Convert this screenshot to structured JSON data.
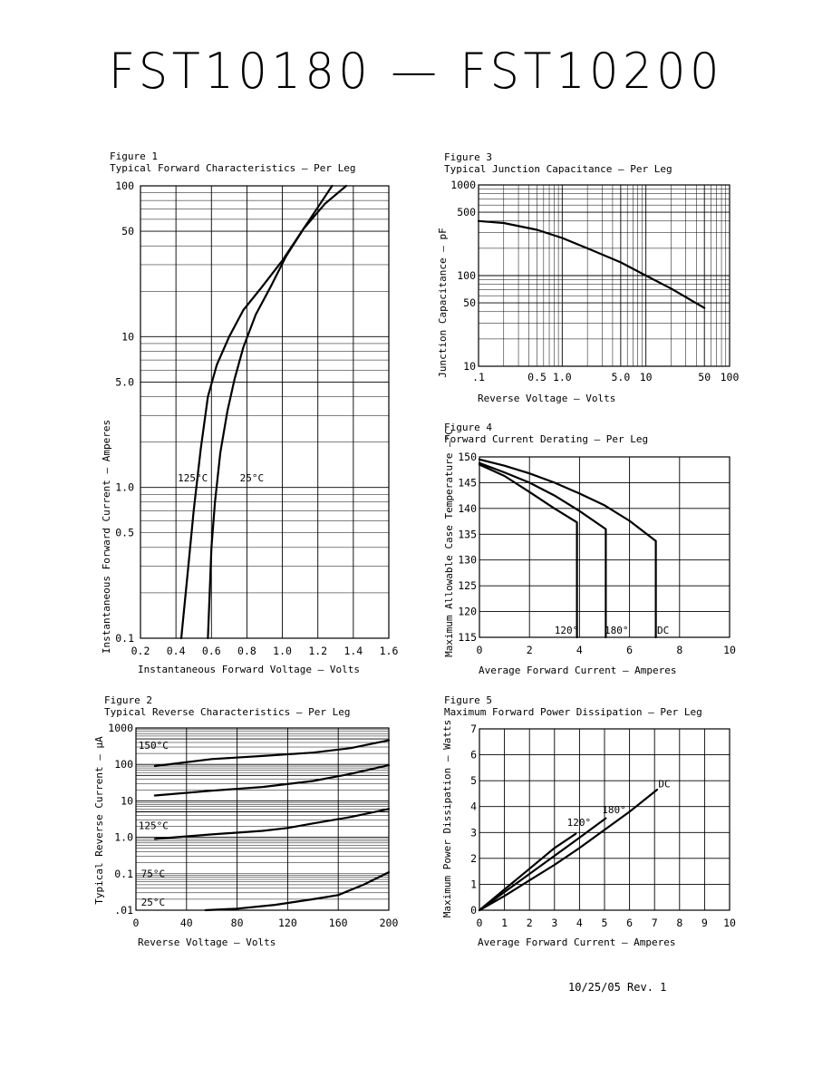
{
  "title": "FST10180 — FST10200",
  "revision": "10/25/05   Rev. 1",
  "figures": [
    {
      "id": "fig1",
      "number": "Figure 1",
      "caption": "Typical Forward Characteristics — Per Leg",
      "xlabel": "Instantaneous Forward Voltage — Volts",
      "ylabel": "Instantaneous Forward Current — Amperes"
    },
    {
      "id": "fig2",
      "number": "Figure 2",
      "caption": "Typical Reverse Characteristics — Per Leg",
      "xlabel": "Reverse Voltage — Volts",
      "ylabel": "Typical Reverse Current — μA"
    },
    {
      "id": "fig3",
      "number": "Figure 3",
      "caption": "Typical Junction Capacitance — Per Leg",
      "xlabel": "Reverse Voltage — Volts",
      "ylabel": "Junction Capacitance — pF"
    },
    {
      "id": "fig4",
      "number": "Figure 4",
      "caption": "Forward Current Derating — Per Leg",
      "xlabel": "Average Forward Current — Amperes",
      "ylabel": "Maximum Allowable Case Temperature —°C"
    },
    {
      "id": "fig5",
      "number": "Figure 5",
      "caption": "Maximum Forward Power Dissipation — Per Leg",
      "xlabel": "Average Forward Current — Amperes",
      "ylabel": "Maximum Power Dissipation — Watts"
    }
  ],
  "chart_data": [
    {
      "id": "fig1",
      "type": "line",
      "title": "Typical Forward Characteristics — Per Leg",
      "xlabel": "Instantaneous Forward Voltage — Volts",
      "ylabel": "Instantaneous Forward Current — Amperes",
      "xscale": "linear",
      "yscale": "log",
      "xlim": [
        0.2,
        1.6
      ],
      "ylim": [
        0.1,
        100
      ],
      "xticks": [
        0.2,
        0.4,
        0.6,
        0.8,
        1.0,
        1.2,
        1.4,
        1.6
      ],
      "xtick_labels": [
        "0.2",
        "0.4",
        "0.6",
        "0.8",
        "1.0",
        "1.2",
        "1.4",
        "1.6"
      ],
      "yticks": [
        0.1,
        0.5,
        1.0,
        5.0,
        10,
        50,
        100
      ],
      "ytick_labels": [
        "0.1",
        "0.5",
        "1.0",
        "5.0",
        "10",
        "50",
        "100"
      ],
      "grid": true,
      "series": [
        {
          "name": "125°C",
          "x": [
            0.43,
            0.47,
            0.5,
            0.54,
            0.58,
            0.63,
            0.7,
            0.78,
            0.88,
            1.0,
            1.1,
            1.2,
            1.28
          ],
          "y": [
            0.1,
            0.3,
            0.7,
            1.8,
            4.0,
            6.5,
            10,
            15,
            21,
            32,
            48,
            72,
            100
          ],
          "label_at": [
            0.41,
            1.1
          ]
        },
        {
          "name": "25°C",
          "x": [
            0.58,
            0.6,
            0.62,
            0.65,
            0.69,
            0.73,
            0.78,
            0.85,
            0.93,
            1.02,
            1.12,
            1.24,
            1.36
          ],
          "y": [
            0.1,
            0.4,
            0.8,
            1.7,
            3.2,
            5.2,
            8.5,
            14,
            21,
            34,
            52,
            76,
            100
          ],
          "label_at": [
            0.76,
            1.1
          ]
        }
      ]
    },
    {
      "id": "fig2",
      "type": "line",
      "title": "Typical Reverse Characteristics — Per Leg",
      "xlabel": "Reverse Voltage — Volts",
      "ylabel": "Typical Reverse Current — μA",
      "xscale": "linear",
      "yscale": "log",
      "xlim": [
        0,
        200
      ],
      "ylim": [
        0.01,
        1000
      ],
      "xticks": [
        0,
        40,
        80,
        120,
        160,
        200
      ],
      "xtick_labels": [
        "0",
        "40",
        "80",
        "120",
        "160",
        "200"
      ],
      "yticks": [
        0.01,
        0.1,
        1.0,
        10,
        100,
        1000
      ],
      "ytick_labels": [
        ".01",
        "0.1",
        "1.0",
        "10",
        "100",
        "1000"
      ],
      "grid": true,
      "series": [
        {
          "name": "150°C",
          "x": [
            15,
            60,
            100,
            140,
            170,
            200
          ],
          "y": [
            90,
            140,
            170,
            210,
            280,
            460
          ],
          "label_at": [
            2,
            270
          ]
        },
        {
          "name": "",
          "x": [
            15,
            60,
            100,
            140,
            170,
            200
          ],
          "y": [
            14,
            19,
            24,
            35,
            55,
            95
          ]
        },
        {
          "name": "125°C",
          "x": [
            15,
            60,
            100,
            120,
            140,
            170,
            200
          ],
          "y": [
            0.9,
            1.2,
            1.5,
            1.8,
            2.4,
            3.6,
            6
          ],
          "label_at": [
            2,
            1.7
          ]
        },
        {
          "name": "75°C",
          "label_at": [
            4,
            0.082
          ]
        },
        {
          "name": "25°C",
          "x": [
            55,
            80,
            110,
            140,
            160,
            180,
            200
          ],
          "y": [
            0.01,
            0.011,
            0.014,
            0.02,
            0.026,
            0.05,
            0.11
          ],
          "label_at": [
            4,
            0.0135
          ]
        }
      ]
    },
    {
      "id": "fig3",
      "type": "line",
      "title": "Typical Junction Capacitance — Per Leg",
      "xlabel": "Reverse Voltage — Volts",
      "ylabel": "Junction Capacitance — pF",
      "xscale": "log",
      "yscale": "log",
      "xlim": [
        0.1,
        100
      ],
      "ylim": [
        10,
        1000
      ],
      "xticks": [
        0.1,
        0.5,
        1.0,
        5.0,
        10,
        50,
        100
      ],
      "xtick_labels": [
        ".1",
        "0.5",
        "1.0",
        "5.0",
        "10",
        "50",
        "100"
      ],
      "yticks": [
        10,
        50,
        100,
        500,
        1000
      ],
      "ytick_labels": [
        "10",
        "50",
        "100",
        "500",
        "1000"
      ],
      "grid": true,
      "series": [
        {
          "name": "",
          "x": [
            0.1,
            0.2,
            0.5,
            1,
            2,
            5,
            10,
            20,
            50
          ],
          "y": [
            400,
            380,
            320,
            260,
            200,
            140,
            100,
            72,
            44
          ]
        }
      ]
    },
    {
      "id": "fig4",
      "type": "line",
      "title": "Forward Current Derating — Per Leg",
      "xlabel": "Average Forward Current — Amperes",
      "ylabel": "Maximum Allowable Case Temperature —°C",
      "xscale": "linear",
      "yscale": "linear",
      "xlim": [
        0,
        10
      ],
      "ylim": [
        115,
        150
      ],
      "xticks": [
        0,
        2,
        4,
        6,
        8,
        10
      ],
      "xtick_labels": [
        "0",
        "2",
        "4",
        "6",
        "8",
        "10"
      ],
      "yticks": [
        115,
        120,
        125,
        130,
        135,
        140,
        145,
        150
      ],
      "ytick_labels": [
        "115",
        "120",
        "125",
        "130",
        "135",
        "140",
        "145",
        "150"
      ],
      "grid": true,
      "series": [
        {
          "name": "120°",
          "x": [
            0,
            1,
            2,
            3,
            3.9,
            3.9
          ],
          "y": [
            148.5,
            146.3,
            143.2,
            140,
            137.3,
            115
          ],
          "label_at": [
            3.0,
            115.7
          ]
        },
        {
          "name": "180°",
          "x": [
            0,
            1,
            2,
            3,
            4,
            5.05,
            5.05
          ],
          "y": [
            148.8,
            147,
            145,
            142.5,
            139.5,
            136,
            115
          ],
          "label_at": [
            5.0,
            115.7
          ]
        },
        {
          "name": "DC",
          "x": [
            0,
            1,
            2,
            3,
            4,
            5,
            6,
            7.05,
            7.05
          ],
          "y": [
            149.5,
            148.3,
            146.8,
            145,
            142.9,
            140.6,
            137.6,
            133.7,
            115
          ],
          "label_at": [
            7.1,
            115.7
          ]
        }
      ]
    },
    {
      "id": "fig5",
      "type": "line",
      "title": "Maximum Forward Power Dissipation — Per Leg",
      "xlabel": "Average Forward Current — Amperes",
      "ylabel": "Maximum Power Dissipation — Watts",
      "xscale": "linear",
      "yscale": "linear",
      "xlim": [
        0,
        10
      ],
      "ylim": [
        0,
        7
      ],
      "xticks": [
        0,
        1,
        2,
        3,
        4,
        5,
        6,
        7,
        8,
        9,
        10
      ],
      "xtick_labels": [
        "0",
        "1",
        "2",
        "3",
        "4",
        "5",
        "6",
        "7",
        "8",
        "9",
        "10"
      ],
      "yticks": [
        0,
        1,
        2,
        3,
        4,
        5,
        6,
        7
      ],
      "ytick_labels": [
        "0",
        "1",
        "2",
        "3",
        "4",
        "5",
        "6",
        "7"
      ],
      "grid": true,
      "series": [
        {
          "name": "120°",
          "x": [
            0,
            1,
            2,
            3,
            3.85
          ],
          "y": [
            0,
            0.8,
            1.6,
            2.4,
            2.95
          ],
          "label_at": [
            3.5,
            3.25
          ]
        },
        {
          "name": "180°",
          "x": [
            0,
            1,
            2,
            3,
            4,
            5.05
          ],
          "y": [
            0,
            0.7,
            1.4,
            2.1,
            2.8,
            3.55
          ],
          "label_at": [
            4.9,
            3.75
          ]
        },
        {
          "name": "DC",
          "x": [
            0,
            1,
            2,
            3,
            4,
            5,
            6,
            7.1
          ],
          "y": [
            0,
            0.55,
            1.15,
            1.75,
            2.4,
            3.1,
            3.8,
            4.65
          ],
          "label_at": [
            7.15,
            4.75
          ]
        }
      ]
    }
  ]
}
